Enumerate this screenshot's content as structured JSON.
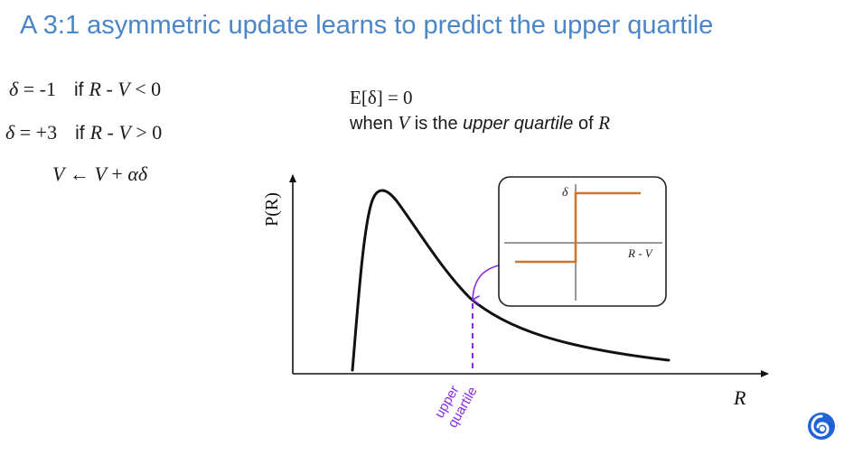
{
  "title": "A 3:1 asymmetric update learns to predict the upper quartile",
  "rules": {
    "rule1": {
      "delta": "δ",
      "eq": " = ",
      "value": "-1",
      "if": "if",
      "r": "R",
      "minus": " - ",
      "v": "V",
      "cmp": " < ",
      "zero": "0"
    },
    "rule2": {
      "delta": "δ",
      "eq": " = ",
      "value": "+3",
      "if": "if",
      "r": "R",
      "minus": " - ",
      "v": "V",
      "cmp": " > ",
      "zero": "0"
    },
    "update": {
      "v1": "V",
      "arrow": " ← ",
      "v2": "V",
      "plus": " + ",
      "alpha": "α",
      "delta": "δ"
    }
  },
  "expectation": {
    "line1": "E[δ] = 0",
    "line2_pre": "when ",
    "line2_v": "V",
    "line2_mid": " is the ",
    "line2_it": "upper quartile",
    "line2_of": " of ",
    "line2_r": "R"
  },
  "plot": {
    "ylabel": "P(R)",
    "xlabel": "R",
    "marker_label_line1": "upper",
    "marker_label_line2": "quartile",
    "curve_color": "#111111",
    "marker_color": "#8a2be2"
  },
  "inset": {
    "ylabel": "δ",
    "xlabel": "R - V",
    "step_color": "#c87830"
  },
  "colors": {
    "title": "#4a86c8",
    "logo": "#1f63d6"
  }
}
